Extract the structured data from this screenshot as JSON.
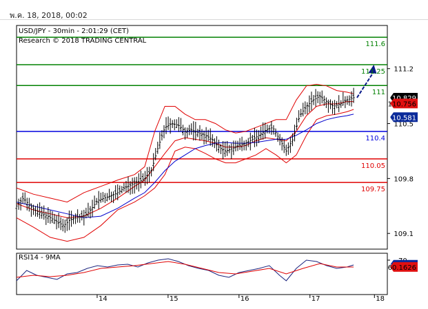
{
  "header": {
    "date": "พ.ค. 18, 2018, 00:02"
  },
  "chart_data": {
    "type": "candlestick",
    "title": "USD/JPY - 30min - 2:01:29 (CET)",
    "subtitle": "Research © 2018 TRADING CENTRAL",
    "ylim": [
      108.9,
      111.75
    ],
    "y_ticks": [
      "111.2",
      "110.5",
      "109.8",
      "109.1"
    ],
    "x_ticks": [
      "14",
      "15",
      "16",
      "17",
      "18"
    ],
    "levels": [
      {
        "label": "111.6",
        "value": 111.6,
        "color": "#008000"
      },
      {
        "label": "111.25",
        "value": 111.25,
        "color": "#008000"
      },
      {
        "label": "111",
        "value": 110.985,
        "color": "#008000"
      },
      {
        "label": "110.4",
        "value": 110.4,
        "color": "#0000dd"
      },
      {
        "label": "110.05",
        "value": 110.05,
        "color": "#e00000"
      },
      {
        "label": "109.75",
        "value": 109.75,
        "color": "#e00000"
      }
    ],
    "price_tags": [
      {
        "label": "110.829",
        "value": 110.829,
        "bg": "#000000",
        "fg": "#ffffff"
      },
      {
        "label": "110.756",
        "value": 110.756,
        "bg": "#e01010",
        "fg": "#000000"
      },
      {
        "label": "110.581",
        "value": 110.581,
        "bg": "#0a2a9a",
        "fg": "#ffffff"
      }
    ],
    "price_path": [
      [
        0,
        109.45
      ],
      [
        4,
        109.55
      ],
      [
        8,
        109.45
      ],
      [
        12,
        109.38
      ],
      [
        16,
        109.35
      ],
      [
        20,
        109.3
      ],
      [
        24,
        109.25
      ],
      [
        28,
        109.2
      ],
      [
        32,
        109.28
      ],
      [
        36,
        109.3
      ],
      [
        40,
        109.32
      ],
      [
        44,
        109.4
      ],
      [
        48,
        109.52
      ],
      [
        52,
        109.55
      ],
      [
        56,
        109.58
      ],
      [
        60,
        109.62
      ],
      [
        64,
        109.68
      ],
      [
        68,
        109.72
      ],
      [
        72,
        109.75
      ],
      [
        76,
        109.8
      ],
      [
        80,
        109.9
      ],
      [
        84,
        110.2
      ],
      [
        88,
        110.45
      ],
      [
        92,
        110.5
      ],
      [
        96,
        110.48
      ],
      [
        100,
        110.4
      ],
      [
        104,
        110.42
      ],
      [
        108,
        110.38
      ],
      [
        112,
        110.35
      ],
      [
        116,
        110.3
      ],
      [
        120,
        110.2
      ],
      [
        124,
        110.15
      ],
      [
        128,
        110.18
      ],
      [
        132,
        110.22
      ],
      [
        136,
        110.25
      ],
      [
        140,
        110.3
      ],
      [
        144,
        110.35
      ],
      [
        148,
        110.42
      ],
      [
        152,
        110.45
      ],
      [
        156,
        110.3
      ],
      [
        160,
        110.15
      ],
      [
        164,
        110.3
      ],
      [
        168,
        110.6
      ],
      [
        172,
        110.72
      ],
      [
        176,
        110.8
      ],
      [
        180,
        110.85
      ],
      [
        184,
        110.78
      ],
      [
        188,
        110.72
      ],
      [
        192,
        110.75
      ],
      [
        196,
        110.8
      ],
      [
        200,
        110.83
      ]
    ],
    "ma_upper": [
      [
        0,
        109.68
      ],
      [
        10,
        109.6
      ],
      [
        20,
        109.55
      ],
      [
        30,
        109.5
      ],
      [
        40,
        109.62
      ],
      [
        50,
        109.7
      ],
      [
        60,
        109.78
      ],
      [
        70,
        109.85
      ],
      [
        76,
        109.95
      ],
      [
        82,
        110.4
      ],
      [
        88,
        110.72
      ],
      [
        94,
        110.72
      ],
      [
        100,
        110.62
      ],
      [
        106,
        110.55
      ],
      [
        112,
        110.55
      ],
      [
        118,
        110.5
      ],
      [
        124,
        110.42
      ],
      [
        130,
        110.38
      ],
      [
        136,
        110.4
      ],
      [
        142,
        110.45
      ],
      [
        148,
        110.5
      ],
      [
        154,
        110.55
      ],
      [
        160,
        110.55
      ],
      [
        166,
        110.8
      ],
      [
        172,
        110.98
      ],
      [
        178,
        111.0
      ],
      [
        184,
        110.98
      ],
      [
        190,
        110.92
      ],
      [
        196,
        110.9
      ],
      [
        200,
        110.88
      ]
    ],
    "ma_lower": [
      [
        0,
        109.3
      ],
      [
        10,
        109.18
      ],
      [
        20,
        109.05
      ],
      [
        30,
        109.0
      ],
      [
        40,
        109.05
      ],
      [
        50,
        109.2
      ],
      [
        60,
        109.4
      ],
      [
        70,
        109.5
      ],
      [
        76,
        109.58
      ],
      [
        82,
        109.68
      ],
      [
        88,
        109.85
      ],
      [
        94,
        110.15
      ],
      [
        100,
        110.2
      ],
      [
        106,
        110.18
      ],
      [
        112,
        110.12
      ],
      [
        118,
        110.05
      ],
      [
        124,
        110.0
      ],
      [
        130,
        110.0
      ],
      [
        136,
        110.05
      ],
      [
        142,
        110.1
      ],
      [
        148,
        110.18
      ],
      [
        154,
        110.1
      ],
      [
        160,
        110.0
      ],
      [
        166,
        110.1
      ],
      [
        172,
        110.35
      ],
      [
        178,
        110.55
      ],
      [
        184,
        110.6
      ],
      [
        190,
        110.62
      ],
      [
        196,
        110.65
      ],
      [
        200,
        110.68
      ]
    ],
    "ma_middle": [
      [
        0,
        109.48
      ],
      [
        10,
        109.4
      ],
      [
        20,
        109.35
      ],
      [
        30,
        109.3
      ],
      [
        40,
        109.32
      ],
      [
        50,
        109.42
      ],
      [
        60,
        109.55
      ],
      [
        70,
        109.7
      ],
      [
        76,
        109.78
      ],
      [
        82,
        109.95
      ],
      [
        88,
        110.12
      ],
      [
        94,
        110.28
      ],
      [
        100,
        110.32
      ],
      [
        106,
        110.3
      ],
      [
        112,
        110.28
      ],
      [
        118,
        110.25
      ],
      [
        124,
        110.2
      ],
      [
        130,
        110.2
      ],
      [
        136,
        110.22
      ],
      [
        142,
        110.28
      ],
      [
        148,
        110.32
      ],
      [
        154,
        110.3
      ],
      [
        160,
        110.28
      ],
      [
        166,
        110.4
      ],
      [
        172,
        110.6
      ],
      [
        178,
        110.72
      ],
      [
        184,
        110.75
      ],
      [
        190,
        110.75
      ],
      [
        196,
        110.78
      ],
      [
        200,
        110.78
      ]
    ],
    "ma_blue": [
      [
        0,
        109.5
      ],
      [
        10,
        109.45
      ],
      [
        20,
        109.4
      ],
      [
        30,
        109.35
      ],
      [
        40,
        109.3
      ],
      [
        50,
        109.32
      ],
      [
        60,
        109.42
      ],
      [
        70,
        109.55
      ],
      [
        76,
        109.62
      ],
      [
        82,
        109.75
      ],
      [
        88,
        109.9
      ],
      [
        94,
        110.02
      ],
      [
        100,
        110.1
      ],
      [
        106,
        110.18
      ],
      [
        112,
        110.22
      ],
      [
        118,
        110.25
      ],
      [
        124,
        110.26
      ],
      [
        130,
        110.25
      ],
      [
        136,
        110.25
      ],
      [
        142,
        110.26
      ],
      [
        148,
        110.28
      ],
      [
        154,
        110.3
      ],
      [
        160,
        110.3
      ],
      [
        166,
        110.35
      ],
      [
        172,
        110.42
      ],
      [
        178,
        110.5
      ],
      [
        184,
        110.55
      ],
      [
        190,
        110.58
      ],
      [
        196,
        110.6
      ],
      [
        200,
        110.62
      ]
    ],
    "arrow": {
      "from": [
        202,
        110.83
      ],
      "to": [
        212,
        111.25
      ]
    },
    "rsi": {
      "title": "RSI14 - 9MA",
      "y_ticks": [
        "70"
      ],
      "ylim": [
        20,
        80
      ],
      "value_tags": [
        {
          "label": "63.2623",
          "value": 63.26,
          "bg": "#0a2a9a",
          "fg": "#ffffff"
        },
        {
          "label": "60.1626",
          "value": 60.16,
          "bg": "#e01010",
          "fg": "#000000"
        }
      ],
      "rsi_path": [
        [
          0,
          40
        ],
        [
          6,
          55
        ],
        [
          12,
          48
        ],
        [
          18,
          45
        ],
        [
          24,
          42
        ],
        [
          30,
          50
        ],
        [
          36,
          52
        ],
        [
          42,
          58
        ],
        [
          48,
          62
        ],
        [
          54,
          60
        ],
        [
          60,
          63
        ],
        [
          66,
          64
        ],
        [
          72,
          60
        ],
        [
          78,
          66
        ],
        [
          84,
          70
        ],
        [
          90,
          72
        ],
        [
          96,
          68
        ],
        [
          102,
          62
        ],
        [
          108,
          58
        ],
        [
          114,
          55
        ],
        [
          120,
          48
        ],
        [
          126,
          45
        ],
        [
          132,
          52
        ],
        [
          138,
          55
        ],
        [
          144,
          58
        ],
        [
          150,
          62
        ],
        [
          156,
          48
        ],
        [
          160,
          40
        ],
        [
          166,
          58
        ],
        [
          172,
          70
        ],
        [
          178,
          68
        ],
        [
          184,
          62
        ],
        [
          190,
          58
        ],
        [
          196,
          60
        ],
        [
          200,
          63
        ]
      ],
      "ma_path": [
        [
          0,
          45
        ],
        [
          10,
          48
        ],
        [
          20,
          46
        ],
        [
          30,
          48
        ],
        [
          40,
          52
        ],
        [
          50,
          58
        ],
        [
          60,
          60
        ],
        [
          70,
          62
        ],
        [
          80,
          65
        ],
        [
          90,
          68
        ],
        [
          100,
          64
        ],
        [
          110,
          58
        ],
        [
          120,
          52
        ],
        [
          130,
          50
        ],
        [
          140,
          54
        ],
        [
          150,
          58
        ],
        [
          160,
          50
        ],
        [
          170,
          58
        ],
        [
          180,
          65
        ],
        [
          190,
          60
        ],
        [
          200,
          60
        ]
      ]
    }
  }
}
